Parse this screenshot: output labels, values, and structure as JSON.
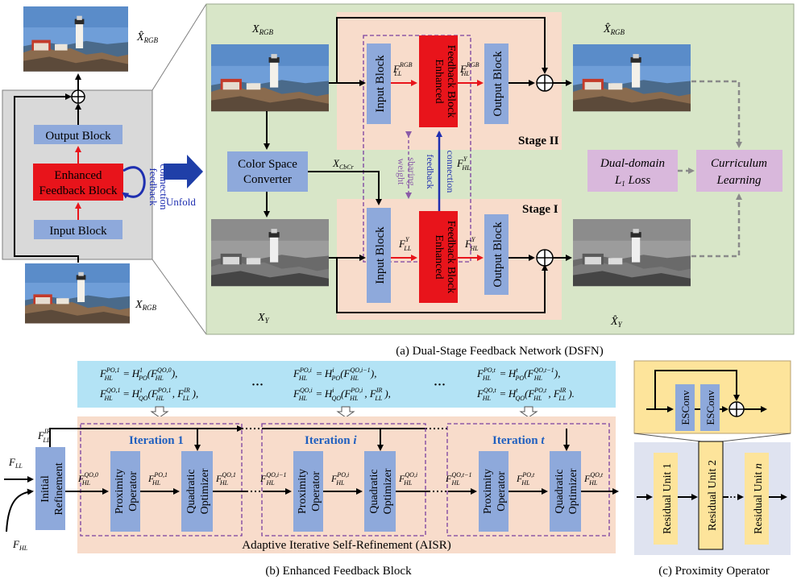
{
  "colors": {
    "block_blue": "#8ea9db",
    "block_red": "#e8141b",
    "panel_green": "#d8e6c8",
    "panel_gray": "#d9d9d9",
    "panel_pink": "#f8dccb",
    "eq_blue": "#b3e3f5",
    "loss_purple": "#d9b8dc",
    "prox_yellow": "#fde49b",
    "prox_lavender": "#dfe3f0",
    "unfold_arrow": "#1f3fa8",
    "iter_label": "#1f5fbf",
    "dashed_purple": "#7a3fa0"
  },
  "left_panel": {
    "output_label": "X̂",
    "output_sub": "RGB",
    "input_label": "X",
    "input_sub": "RGB",
    "output_block": "Output Block",
    "efb_line1": "Enhanced",
    "efb_line2": "Feedback Block",
    "input_block": "Input Block",
    "feedback_line1": "feedback",
    "feedback_line2": "connection",
    "unfold": "Unfold"
  },
  "dsfn": {
    "x_rgb": "X",
    "x_rgb_sub": "RGB",
    "x_y": "X",
    "x_y_sub": "Y",
    "xhat_rgb": "X̂",
    "xhat_rgb_sub": "RGB",
    "xhat_y": "X̂",
    "xhat_y_sub": "Y",
    "color_space_line1": "Color Space",
    "color_space_line2": "Converter",
    "x_cbcr": "X",
    "x_cbcr_sub": "CbCr",
    "input_block": "Input Block",
    "efb_line1": "Enhanced",
    "efb_line2": "Feedback Block",
    "output_block": "Output Block",
    "stage2": "Stage II",
    "stage1": "Stage I",
    "f_ll_rgb": "F",
    "f_ll_rgb_sup": "RGB",
    "f_ll_rgb_sub": "LL",
    "f_hl_rgb": "F",
    "f_hl_rgb_sup": "RGB",
    "f_hl_rgb_sub": "HL",
    "f_ll_y": "F",
    "f_ll_y_sup": "Y",
    "f_ll_y_sub": "LL",
    "f_hl_y": "F",
    "f_hl_y_sup": "Y",
    "f_hl_y_sub": "HL",
    "f_hl_y_mid": "F",
    "f_hl_y_mid_sup": "Y",
    "f_hl_y_mid_sub": "HL",
    "weight_line1": "weight",
    "weight_line2": "sharing",
    "feedback_line1": "feedback",
    "feedback_line2": "connection",
    "loss_line1": "Dual-domain",
    "loss_line2_main": "L",
    "loss_line2_sub": "1",
    "loss_line2_rest": "Loss",
    "curriculum_line1": "Curriculum",
    "curriculum_line2": "Learning",
    "caption": "(a) Dual-Stage Feedback Network (DSFN)"
  },
  "aisr": {
    "eq1_a": "F",
    "eq1_b": "= H",
    "eq1_c": "(F",
    "eq1_d": "),",
    "eq_left_1_sup": "PO,1",
    "eq_left_1_sub": "HL",
    "eq_left_1_hsup": "1",
    "eq_left_1_hsub": "PO",
    "eq_left_1_arg_sup": "QO,0",
    "eq_left_1_arg_sub": "HL",
    "eq_left_2_sup": "QO,1",
    "eq_left_2_sub": "HL",
    "eq_left_2_hsup": "1",
    "eq_left_2_hsub": "QO",
    "eq_left_2_arg_sup": "PO,1",
    "eq_left_2_arg_sub": "HL",
    "eq_left_2_arg2_sup": "IR",
    "eq_left_2_arg2_sub": "LL",
    "eq_mid_1_sup": "PO,i",
    "eq_mid_1_hsup": "i",
    "eq_mid_1_arg_sup": "QO,i−1",
    "eq_mid_2_sup": "QO,i",
    "eq_mid_2_hsup": "i",
    "eq_mid_2_arg_sup": "PO,i",
    "eq_right_1_sup": "PO,t",
    "eq_right_1_hsup": "t",
    "eq_right_1_arg_sup": "QO,t−1",
    "eq_right_2_sup": "QO,t",
    "eq_right_2_hsup": "t",
    "eq_right_2_arg_sup": "PO,t",
    "ellipsis": "···",
    "iteration_1": "Iteration 1",
    "iteration_i_word": "Iteration",
    "iteration_i_var": "i",
    "iteration_t_word": "Iteration",
    "iteration_t_var": "t",
    "f_ll": "F",
    "f_ll_sub": "LL",
    "f_hl": "F",
    "f_hl_sub": "HL",
    "f_ll_ir": "F",
    "f_ll_ir_sup": "IR",
    "f_ll_ir_sub": "LL",
    "initial_line1": "Initial",
    "initial_line2": "Refinement",
    "prox_line1": "Proximity",
    "prox_line2": "Operator",
    "quad_line1": "Quadratic",
    "quad_line2": "Optimizer",
    "lab_qo0": "QO,0",
    "lab_po1": "PO,1",
    "lab_qo1": "QO,1",
    "lab_qoi_1": "QO,i−1",
    "lab_poi": "PO,i",
    "lab_qoi": "QO,i",
    "lab_qot_1": "QO,t−1",
    "lab_pot": "PO,t",
    "lab_qot": "QO,t",
    "bottom_label": "Adaptive Iterative Self-Refinement (AISR)",
    "caption": "(b) Enhanced Feedback Block"
  },
  "prox": {
    "esconv": "ESConv",
    "res1": "Residual Unit 1",
    "res2": "Residual Unit 2",
    "resn_word": "Residual Unit",
    "resn_var": "n",
    "dots": "···",
    "caption": "(c) Proximity Operator"
  }
}
